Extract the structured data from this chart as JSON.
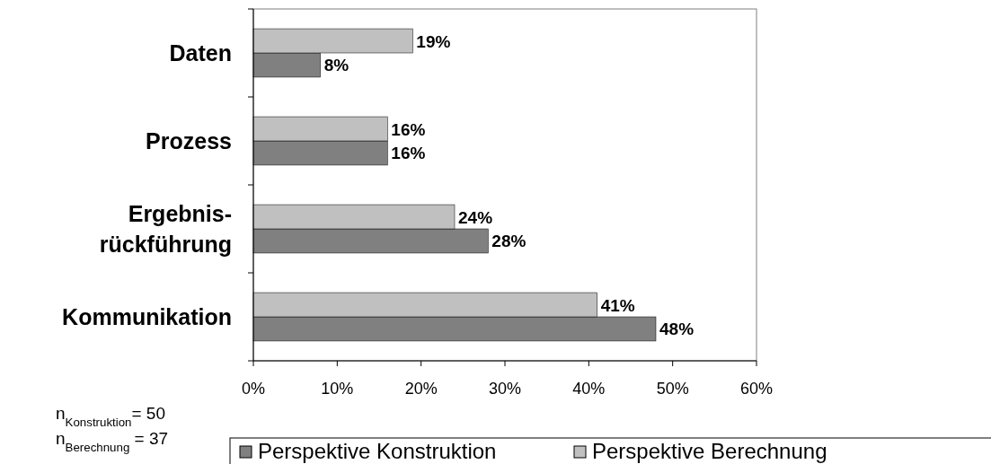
{
  "chart_data": {
    "type": "bar",
    "orientation": "horizontal",
    "categories": [
      "Daten",
      "Prozess",
      "Ergebnis-\nrückführung",
      "Kommunikation"
    ],
    "series": [
      {
        "name": "Perspektive Konstruktion",
        "color": "#808080",
        "values": [
          8,
          16,
          28,
          48
        ],
        "value_labels": [
          "8%",
          "16%",
          "28%",
          "48%"
        ]
      },
      {
        "name": "Perspektive Berechnung",
        "color": "#c0c0c0",
        "values": [
          19,
          16,
          24,
          41
        ],
        "value_labels": [
          "19%",
          "16%",
          "24%",
          "41%"
        ]
      }
    ],
    "xlim": [
      0,
      60
    ],
    "xticks": [
      {
        "value": 0,
        "label": "0%"
      },
      {
        "value": 10,
        "label": "10%"
      },
      {
        "value": 20,
        "label": "20%"
      },
      {
        "value": 30,
        "label": "30%"
      },
      {
        "value": 40,
        "label": "40%"
      },
      {
        "value": 50,
        "label": "50%"
      },
      {
        "value": 60,
        "label": "60%"
      }
    ],
    "grid": false,
    "legend": "bottom",
    "annotations": [
      "n$_{Konstruktion}$= 50",
      "n$_{Berechnung}$ = 37"
    ]
  }
}
